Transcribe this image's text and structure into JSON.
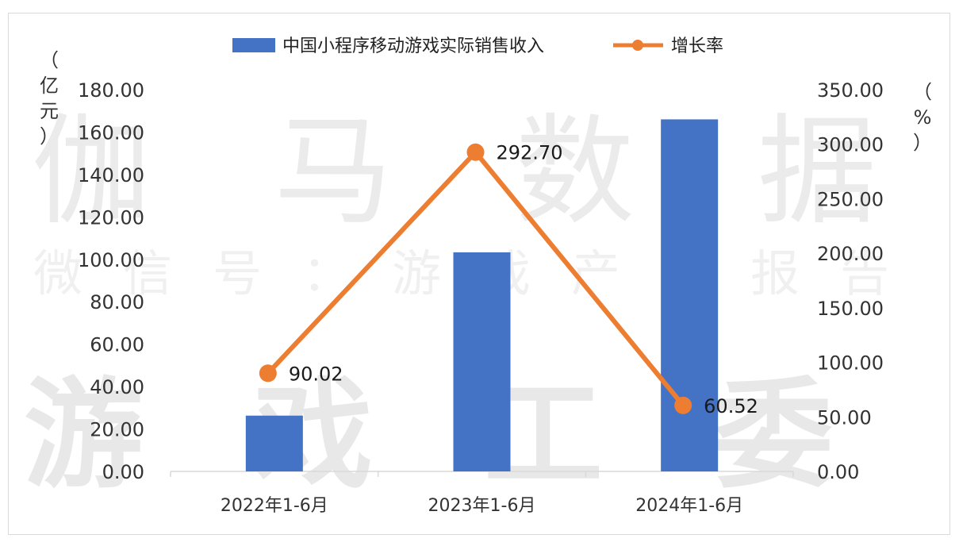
{
  "watermark": {
    "line1": [
      "伽",
      "马",
      "数",
      "据"
    ],
    "line2": [
      "微",
      "信",
      "号",
      "：",
      "游",
      "戏",
      "产",
      "业",
      "报",
      "告"
    ],
    "line3": [
      "游",
      "戏",
      "工",
      "委"
    ]
  },
  "chart_data": {
    "type": "bar",
    "categories": [
      "2022年1-6月",
      "2023年1-6月",
      "2024年1-6月"
    ],
    "series": [
      {
        "name": "中国小程序移动游戏实际销售收入",
        "type": "bar",
        "axis": "left",
        "color": "#4472c4",
        "values": [
          26.3,
          103.3,
          166.0
        ]
      },
      {
        "name": "增长率",
        "type": "line",
        "axis": "right",
        "color": "#ed7d31",
        "values": [
          90.02,
          292.7,
          60.52
        ],
        "labels": [
          "90.02",
          "292.70",
          "60.52"
        ]
      }
    ],
    "y_left": {
      "label": "（亿元）",
      "range": [
        0,
        180
      ],
      "ticks": [
        "0.00",
        "20.00",
        "40.00",
        "60.00",
        "80.00",
        "100.00",
        "120.00",
        "140.00",
        "160.00",
        "180.00"
      ]
    },
    "y_right": {
      "label": "（%）",
      "range": [
        0,
        350
      ],
      "ticks": [
        "0.00",
        "50.00",
        "100.00",
        "150.00",
        "200.00",
        "250.00",
        "300.00",
        "350.00"
      ]
    },
    "grid": false,
    "legend_position": "top"
  }
}
